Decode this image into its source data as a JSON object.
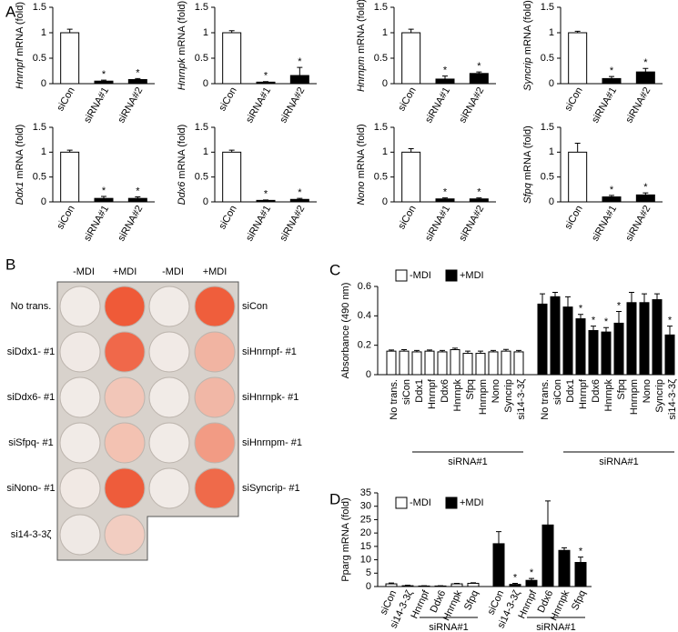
{
  "panels": [
    "A",
    "B",
    "C",
    "D"
  ],
  "chart_data": [
    {
      "type": "bar",
      "ylabel": {
        "gene": "Hnrnpf",
        "unit": "mRNA (fold)"
      },
      "categories": [
        "siCon",
        "siRNA#1",
        "siRNA#2"
      ],
      "values": [
        1,
        0.05,
        0.08
      ],
      "errors": [
        0.07,
        0.02,
        0.02
      ],
      "colors": [
        "#ffffff",
        "#000000",
        "#000000"
      ],
      "markers": [
        null,
        "*",
        "*"
      ],
      "ylim": [
        0,
        1.5
      ],
      "yticks": [
        0,
        0.5,
        1,
        1.5
      ]
    },
    {
      "type": "bar",
      "ylabel": {
        "gene": "Hnrnpk",
        "unit": "mRNA (fold)"
      },
      "categories": [
        "siCon",
        "siRNA#1",
        "siRNA#2"
      ],
      "values": [
        1,
        0.03,
        0.16
      ],
      "errors": [
        0.04,
        0.01,
        0.16
      ],
      "colors": [
        "#ffffff",
        "#000000",
        "#000000"
      ],
      "markers": [
        null,
        "*",
        "*"
      ],
      "ylim": [
        0,
        1.5
      ],
      "yticks": [
        0,
        0.5,
        1,
        1.5
      ]
    },
    {
      "type": "bar",
      "ylabel": {
        "gene": "Hnrnpm",
        "unit": "mRNA (fold)"
      },
      "categories": [
        "siCon",
        "siRNA#1",
        "siRNA#2"
      ],
      "values": [
        1,
        0.09,
        0.2
      ],
      "errors": [
        0.07,
        0.06,
        0.03
      ],
      "colors": [
        "#ffffff",
        "#000000",
        "#000000"
      ],
      "markers": [
        null,
        "*",
        "*"
      ],
      "ylim": [
        0,
        1.5
      ],
      "yticks": [
        0,
        0.5,
        1,
        1.5
      ]
    },
    {
      "type": "bar",
      "ylabel": {
        "gene": "Syncrip",
        "unit": "mRNA (fold)"
      },
      "categories": [
        "siCon",
        "siRNA#1",
        "siRNA#2"
      ],
      "values": [
        1,
        0.1,
        0.23
      ],
      "errors": [
        0.03,
        0.04,
        0.07
      ],
      "colors": [
        "#ffffff",
        "#000000",
        "#000000"
      ],
      "markers": [
        null,
        "*",
        "*"
      ],
      "ylim": [
        0,
        1.5
      ],
      "yticks": [
        0,
        0.5,
        1,
        1.5
      ]
    },
    {
      "type": "bar",
      "ylabel": {
        "gene": "Ddx1",
        "unit": "mRNA (fold)"
      },
      "categories": [
        "siCon",
        "siRNA#1",
        "siRNA#2"
      ],
      "values": [
        1,
        0.07,
        0.07
      ],
      "errors": [
        0.04,
        0.04,
        0.03
      ],
      "colors": [
        "#ffffff",
        "#000000",
        "#000000"
      ],
      "markers": [
        null,
        "*",
        "*"
      ],
      "ylim": [
        0,
        1.5
      ],
      "yticks": [
        0,
        0.5,
        1,
        1.5
      ]
    },
    {
      "type": "bar",
      "ylabel": {
        "gene": "Ddx6",
        "unit": "mRNA (fold)"
      },
      "categories": [
        "siCon",
        "siRNA#1",
        "siRNA#2"
      ],
      "values": [
        1,
        0.03,
        0.05
      ],
      "errors": [
        0.04,
        0.01,
        0.02
      ],
      "colors": [
        "#ffffff",
        "#000000",
        "#000000"
      ],
      "markers": [
        null,
        "*",
        "*"
      ],
      "ylim": [
        0,
        1.5
      ],
      "yticks": [
        0,
        0.5,
        1,
        1.5
      ]
    },
    {
      "type": "bar",
      "ylabel": {
        "gene": "Nono",
        "unit": "mRNA (fold)"
      },
      "categories": [
        "siCon",
        "siRNA#1",
        "siRNA#2"
      ],
      "values": [
        1,
        0.06,
        0.06
      ],
      "errors": [
        0.07,
        0.02,
        0.02
      ],
      "colors": [
        "#ffffff",
        "#000000",
        "#000000"
      ],
      "markers": [
        null,
        "*",
        "*"
      ],
      "ylim": [
        0,
        1.5
      ],
      "yticks": [
        0,
        0.5,
        1,
        1.5
      ]
    },
    {
      "type": "bar",
      "ylabel": {
        "gene": "Sfpq",
        "unit": "mRNA (fold)"
      },
      "categories": [
        "siCon",
        "siRNA#1",
        "siRNA#2"
      ],
      "values": [
        1,
        0.1,
        0.14
      ],
      "errors": [
        0.18,
        0.03,
        0.04
      ],
      "colors": [
        "#ffffff",
        "#000000",
        "#000000"
      ],
      "markers": [
        null,
        "*",
        "*"
      ],
      "ylim": [
        0,
        1.5
      ],
      "yticks": [
        0,
        0.5,
        1,
        1.5
      ]
    },
    {
      "type": "bar",
      "ylabel": "Absorbance (490 nm)",
      "categories": [
        "No trans.",
        "siCon",
        "Ddx1",
        "Hnrnpf",
        "Ddx6",
        "Hnrnpk",
        "Sfpq",
        "Hnrnpm",
        "Nono",
        "Syncrip",
        "si14-3-3ζ",
        "No trans.",
        "siCon",
        "Ddx1",
        "Hnrnpf",
        "Ddx6",
        "Hnrnpk",
        "Sfpq",
        "Hnrnpm",
        "Nono",
        "Syncrip",
        "si14-3-3ζ"
      ],
      "series": [
        {
          "name": "-MDI",
          "color": "#ffffff",
          "values": [
            0.16,
            0.16,
            0.155,
            0.16,
            0.155,
            0.17,
            0.145,
            0.145,
            0.155,
            0.16,
            0.155,
            null,
            null,
            null,
            null,
            null,
            null,
            null,
            null,
            null,
            null,
            null
          ],
          "errors": [
            0.008,
            0.01,
            0.01,
            0.008,
            0.01,
            0.01,
            0.015,
            0.015,
            0.01,
            0.012,
            0.01,
            null,
            null,
            null,
            null,
            null,
            null,
            null,
            null,
            null,
            null,
            null
          ]
        },
        {
          "name": "+MDI",
          "color": "#000000",
          "values": [
            null,
            null,
            null,
            null,
            null,
            null,
            null,
            null,
            null,
            null,
            null,
            0.48,
            0.53,
            0.46,
            0.38,
            0.3,
            0.29,
            0.35,
            0.49,
            0.49,
            0.51,
            0.27
          ],
          "errors": [
            null,
            null,
            null,
            null,
            null,
            null,
            null,
            null,
            null,
            null,
            null,
            0.07,
            0.03,
            0.07,
            0.03,
            0.03,
            0.03,
            0.08,
            0.07,
            0.06,
            0.04,
            0.06
          ]
        }
      ],
      "markers": [
        null,
        null,
        null,
        null,
        null,
        null,
        null,
        null,
        null,
        null,
        null,
        null,
        null,
        null,
        "*",
        "*",
        "*",
        "*",
        null,
        null,
        null,
        "*"
      ],
      "group_labels": [
        "siRNA#1",
        "siRNA#1"
      ],
      "ylim": [
        0,
        0.6
      ],
      "yticks": [
        0,
        0.2,
        0.4,
        0.6
      ],
      "legend": "top-left"
    },
    {
      "type": "bar",
      "ylabel": "Pparg mRNA (fold)",
      "categories": [
        "siCon",
        "si14-3-3ζ",
        "Hnrnpf",
        "Ddx6",
        "Hnrnpk",
        "Sfpq",
        "siCon",
        "si14-3-3ζ",
        "Hnrnpf",
        "Ddx6",
        "Hnrnpk",
        "Sfpq"
      ],
      "series": [
        {
          "name": "-MDI",
          "color": "#ffffff",
          "values": [
            1,
            0.3,
            0.2,
            0.2,
            1,
            1.2,
            null,
            null,
            null,
            null,
            null,
            null
          ],
          "errors": [
            0.3,
            0.2,
            0.1,
            0.1,
            0.2,
            0.2,
            null,
            null,
            null,
            null,
            null,
            null
          ]
        },
        {
          "name": "+MDI",
          "color": "#000000",
          "values": [
            null,
            null,
            null,
            null,
            null,
            null,
            16,
            0.8,
            2.3,
            23,
            13.5,
            9
          ],
          "errors": [
            null,
            null,
            null,
            null,
            null,
            null,
            4.5,
            0.4,
            0.7,
            9,
            1,
            2
          ]
        }
      ],
      "markers": [
        null,
        null,
        null,
        null,
        null,
        null,
        null,
        "*",
        "*",
        null,
        null,
        "*"
      ],
      "group_labels": [
        "siRNA#1",
        "siRNA#1"
      ],
      "ylim": [
        0,
        35
      ],
      "yticks": [
        0,
        5,
        10,
        15,
        20,
        25,
        30,
        35
      ],
      "legend": "top-left"
    }
  ],
  "plate": {
    "columns": [
      "-MDI",
      "+MDI",
      "-MDI",
      "+MDI"
    ],
    "left_labels": [
      "No trans.",
      "siDdx1- #1",
      "siDdx6- #1",
      "siSfpq- #1",
      "siNono- #1",
      "si14-3-3ζ"
    ],
    "right_labels": [
      "siCon",
      "siHnrnpf- #1",
      "siHnrnpk- #1",
      "siHnrnpm- #1",
      "siSyncrip- #1"
    ]
  }
}
